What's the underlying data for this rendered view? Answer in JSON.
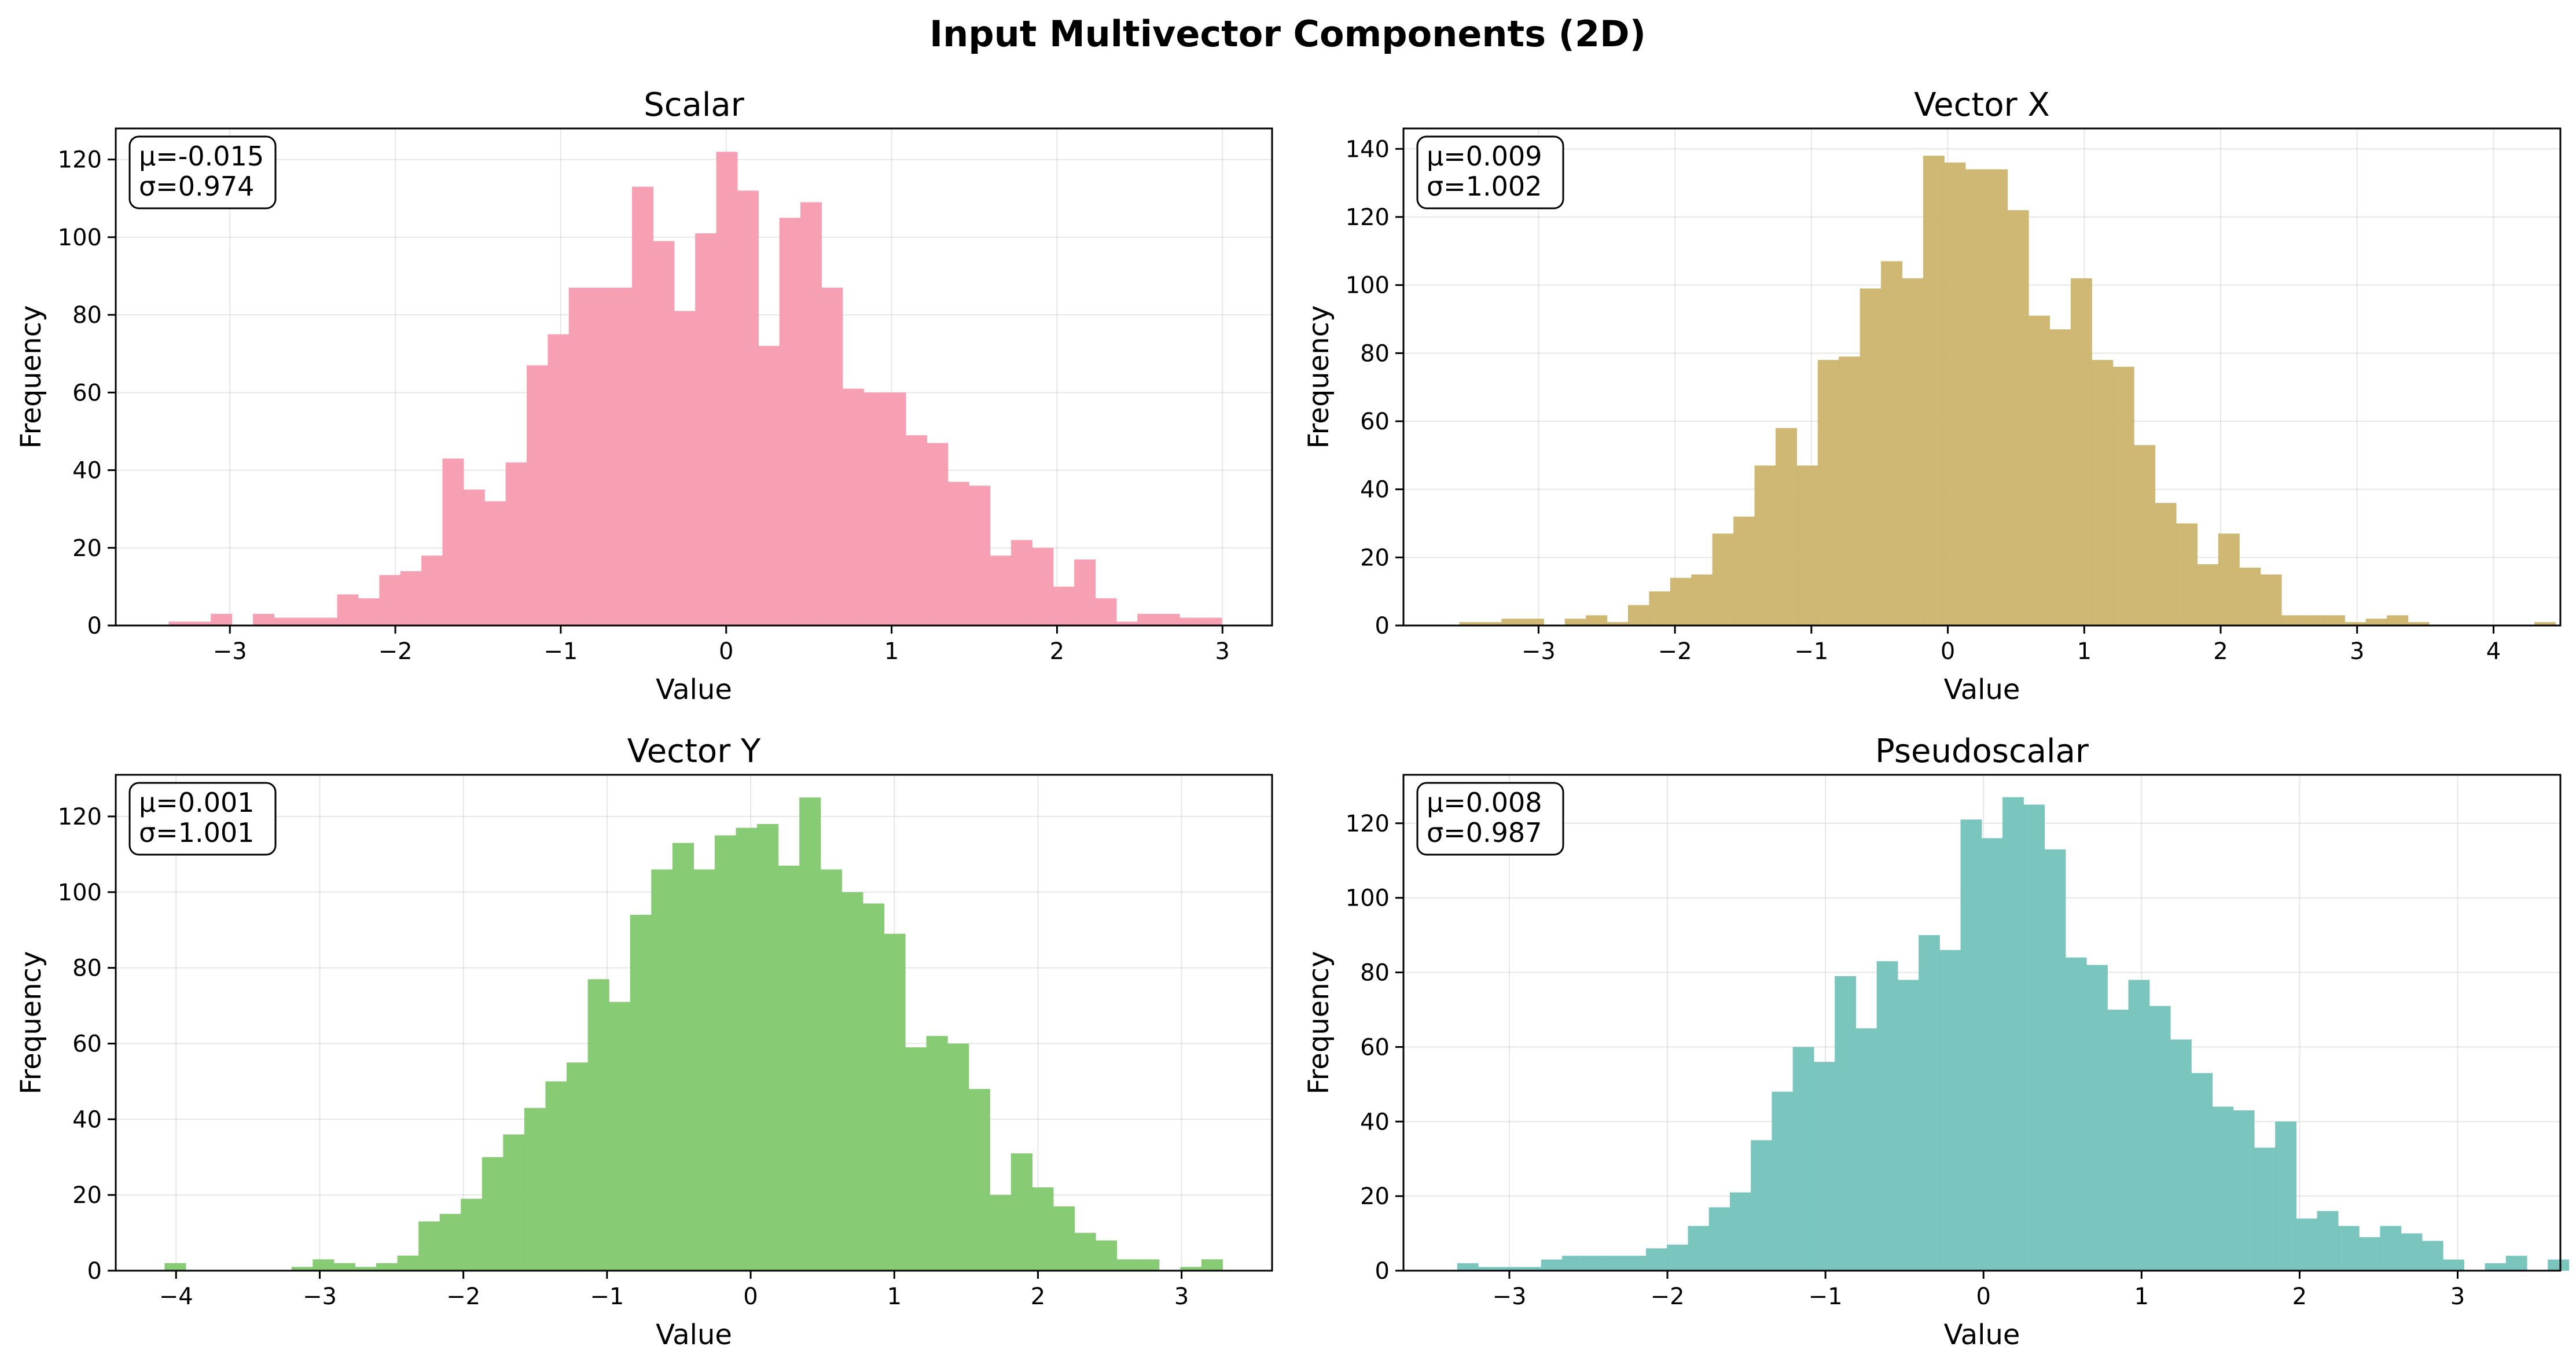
{
  "figure": {
    "title": "Input Multivector Components (2D)"
  },
  "chart_data": [
    {
      "type": "histogram",
      "title": "Scalar",
      "xlabel": "Value",
      "ylabel": "Frequency",
      "color": "#f79bb0",
      "stats": [
        "μ=-0.015",
        "σ=0.974"
      ],
      "xlim": [
        -3.69,
        3.3
      ],
      "ylim": [
        0,
        128
      ],
      "xticks": [
        -3,
        -2,
        -1,
        0,
        1,
        2,
        3
      ],
      "yticks": [
        0,
        20,
        40,
        60,
        80,
        100,
        120
      ],
      "bin_start": -3.37,
      "bin_width": 0.1273,
      "counts": [
        1,
        1,
        3,
        0,
        3,
        2,
        2,
        2,
        8,
        7,
        13,
        14,
        18,
        43,
        35,
        32,
        42,
        67,
        75,
        87,
        87,
        87,
        113,
        99,
        81,
        101,
        122,
        112,
        72,
        105,
        109,
        87,
        61,
        60,
        60,
        49,
        47,
        37,
        36,
        18,
        22,
        20,
        10,
        17,
        7,
        1,
        3,
        3,
        2,
        2
      ],
      "grid": true,
      "legend": "none"
    },
    {
      "type": "histogram",
      "title": "Vector X",
      "xlabel": "Value",
      "ylabel": "Frequency",
      "color": "#cbb46c",
      "stats": [
        "μ=0.009",
        "σ=1.002"
      ],
      "xlim": [
        -3.99,
        4.49
      ],
      "ylim": [
        0,
        146
      ],
      "xticks": [
        -3,
        -2,
        -1,
        0,
        1,
        2,
        3,
        4
      ],
      "yticks": [
        0,
        20,
        40,
        60,
        80,
        100,
        120,
        140
      ],
      "bin_start": -3.58,
      "bin_width": 0.1545,
      "counts": [
        1,
        1,
        2,
        2,
        0,
        2,
        3,
        1,
        6,
        10,
        14,
        15,
        27,
        32,
        47,
        58,
        47,
        78,
        79,
        99,
        107,
        102,
        138,
        136,
        134,
        134,
        122,
        91,
        87,
        102,
        78,
        76,
        53,
        36,
        30,
        18,
        27,
        17,
        15,
        3,
        3,
        3,
        1,
        2,
        3,
        1,
        0,
        0,
        0,
        0,
        0,
        1
      ],
      "grid": true,
      "legend": "none"
    },
    {
      "type": "histogram",
      "title": "Vector Y",
      "xlabel": "Value",
      "ylabel": "Frequency",
      "color": "#82c86e",
      "stats": [
        "μ=0.001",
        "σ=1.001"
      ],
      "xlim": [
        -4.42,
        3.63
      ],
      "ylim": [
        0,
        131
      ],
      "xticks": [
        -4,
        -3,
        -2,
        -1,
        0,
        1,
        2,
        3
      ],
      "yticks": [
        0,
        20,
        40,
        60,
        80,
        100,
        120
      ],
      "bin_start": -4.08,
      "bin_width": 0.1473,
      "counts": [
        2,
        0,
        0,
        0,
        0,
        0,
        1,
        3,
        2,
        1,
        2,
        4,
        13,
        15,
        19,
        30,
        36,
        43,
        50,
        55,
        77,
        71,
        94,
        106,
        113,
        106,
        115,
        117,
        118,
        107,
        125,
        106,
        100,
        97,
        89,
        59,
        62,
        60,
        48,
        20,
        31,
        22,
        17,
        10,
        8,
        3,
        3,
        0,
        1,
        3
      ],
      "grid": true,
      "legend": "none"
    },
    {
      "type": "histogram",
      "title": "Pseudoscalar",
      "xlabel": "Value",
      "ylabel": "Frequency",
      "color": "#73c3bc",
      "stats": [
        "μ=0.008",
        "σ=0.987"
      ],
      "xlim": [
        -3.67,
        3.65
      ],
      "ylim": [
        0,
        133
      ],
      "xticks": [
        -3,
        -2,
        -1,
        0,
        1,
        2,
        3
      ],
      "yticks": [
        0,
        20,
        40,
        60,
        80,
        100,
        120
      ],
      "bin_start": -3.33,
      "bin_width": 0.1327,
      "counts": [
        2,
        1,
        1,
        1,
        3,
        4,
        4,
        4,
        4,
        6,
        7,
        12,
        17,
        21,
        35,
        48,
        60,
        56,
        79,
        65,
        83,
        78,
        90,
        86,
        121,
        116,
        127,
        125,
        113,
        84,
        82,
        70,
        78,
        71,
        62,
        53,
        44,
        43,
        33,
        40,
        14,
        16,
        12,
        9,
        12,
        10,
        8,
        3,
        0,
        2,
        4,
        0,
        3
      ],
      "grid": true,
      "legend": "none"
    }
  ]
}
